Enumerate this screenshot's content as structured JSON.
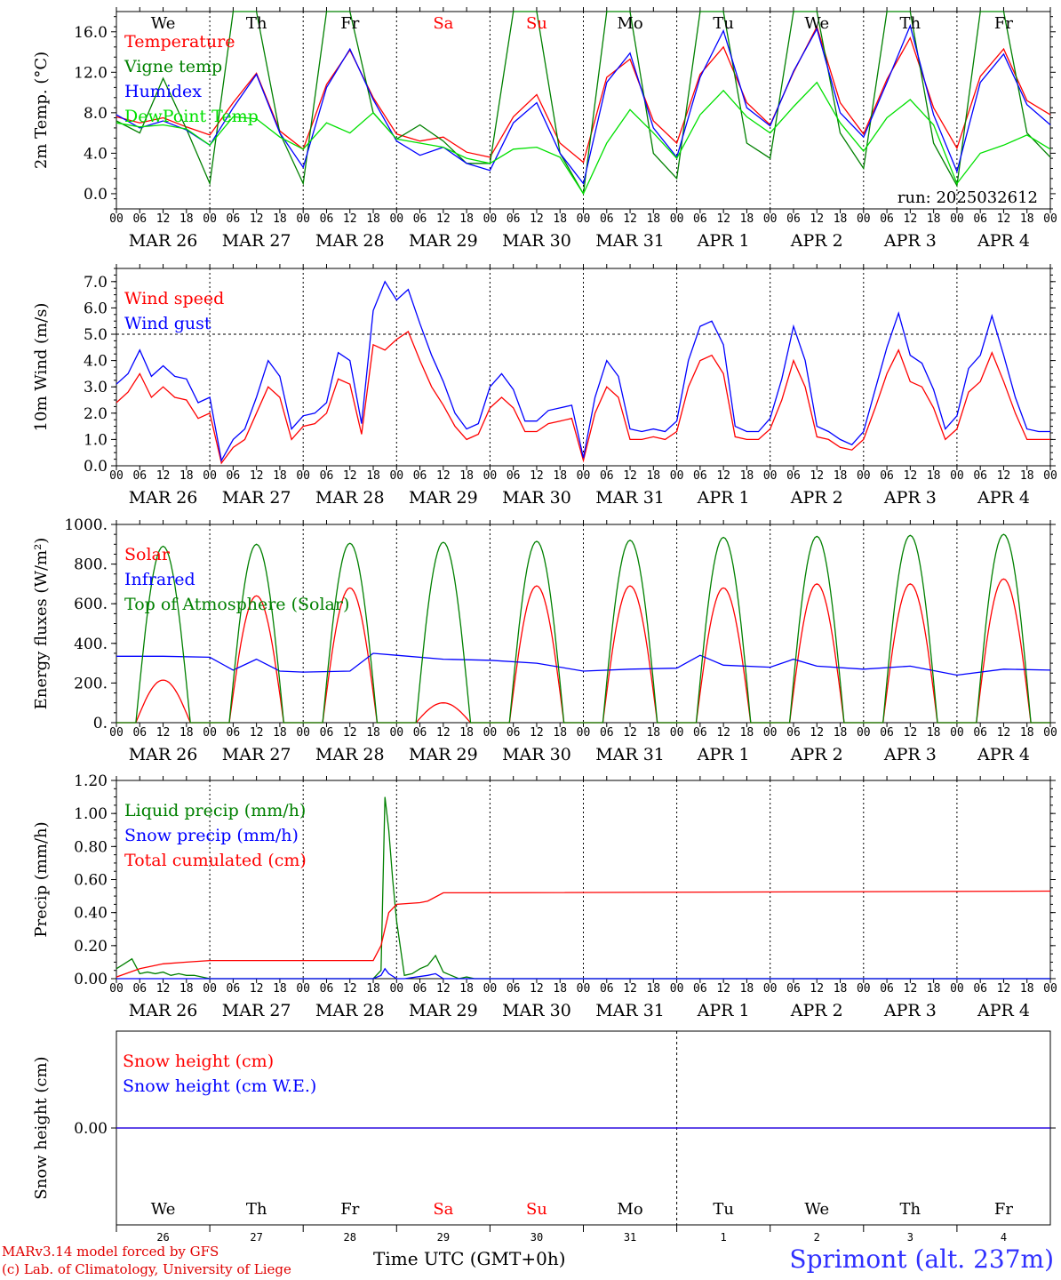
{
  "run_label": "run: 2025032612",
  "hour_ticks": [
    "00",
    "06",
    "12",
    "18"
  ],
  "end_hour_tick": "00",
  "dates": [
    "MAR 26",
    "MAR 27",
    "MAR 28",
    "MAR 29",
    "MAR 30",
    "MAR 31",
    "APR  1",
    "APR  2",
    "APR  3",
    "APR  4"
  ],
  "weekdays": [
    {
      "label": "We",
      "color": "#000000"
    },
    {
      "label": "Th",
      "color": "#000000"
    },
    {
      "label": "Fr",
      "color": "#000000"
    },
    {
      "label": "Sa",
      "color": "#ff0000"
    },
    {
      "label": "Su",
      "color": "#ff0000"
    },
    {
      "label": "Mo",
      "color": "#000000"
    },
    {
      "label": "Tu",
      "color": "#000000"
    },
    {
      "label": "We",
      "color": "#000000"
    },
    {
      "label": "Th",
      "color": "#000000"
    },
    {
      "label": "Fr",
      "color": "#000000"
    }
  ],
  "bottom_day_numbers": [
    "26",
    "27",
    "28",
    "29",
    "30",
    "31",
    "1",
    "2",
    "3",
    "4"
  ],
  "bottom_month_labels": [
    "MAR",
    "APR"
  ],
  "footer": {
    "model": "MARv3.14 model forced by GFS",
    "lab": "(c) Lab. of Climatology, University of Liege",
    "xlabel": "Time UTC (GMT+0h)",
    "station": "Sprimont (alt. 237m)"
  },
  "colors": {
    "red": "#ff0000",
    "green": "#008000",
    "blue": "#0000ff",
    "lightgreen": "#00e000"
  },
  "chart_data": [
    {
      "type": "line",
      "ylabel": "2m Temp. (°C)",
      "ylim": [
        -1.5,
        18
      ],
      "yticks": [
        "0.0",
        "4.0",
        "8.0",
        "12.0",
        "16.0"
      ],
      "ytick_values": [
        0,
        4,
        8,
        12,
        16
      ],
      "x_unit": "hours since MAR 26 00 UTC",
      "series": [
        {
          "name": "Temperature",
          "color": "#ff0000",
          "x": [
            0,
            6,
            12,
            18,
            24,
            30,
            36,
            42,
            48,
            54,
            60,
            66,
            72,
            78,
            84,
            90,
            96,
            102,
            108,
            114,
            120,
            126,
            132,
            138,
            144,
            150,
            156,
            162,
            168,
            174,
            180,
            186,
            192,
            198,
            204,
            210,
            216,
            222,
            228,
            234,
            240
          ],
          "y": [
            7.6,
            7.0,
            7.5,
            6.6,
            5.8,
            9.0,
            11.9,
            6.2,
            4.4,
            10.8,
            14.2,
            9.5,
            5.9,
            5.2,
            5.6,
            4.1,
            3.6,
            7.6,
            9.8,
            5.0,
            3.1,
            11.5,
            13.3,
            7.2,
            5.0,
            11.8,
            14.5,
            9.0,
            6.8,
            12.0,
            16.5,
            9.0,
            5.9,
            11.3,
            15.4,
            8.5,
            4.5,
            11.6,
            14.3,
            9.2,
            7.8
          ]
        },
        {
          "name": "Vigne temp",
          "color": "#008000",
          "x": [
            0,
            6,
            12,
            18,
            24,
            30,
            36,
            42,
            48,
            54,
            60,
            66,
            72,
            78,
            84,
            90,
            96,
            102,
            108,
            114,
            120,
            126,
            132,
            138,
            144,
            150,
            156,
            162,
            168,
            174,
            180,
            186,
            192,
            198,
            204,
            210,
            216,
            222,
            228,
            234,
            240
          ],
          "y": [
            7.2,
            6.0,
            11.4,
            6.4,
            1.0,
            18.0,
            18.0,
            6.0,
            1.0,
            18.0,
            18.0,
            8.0,
            5.4,
            6.8,
            5.2,
            3.0,
            3.0,
            18.0,
            18.0,
            4.0,
            0.0,
            18.0,
            18.0,
            4.0,
            1.5,
            18.0,
            18.0,
            5.0,
            3.5,
            18.0,
            18.0,
            6.0,
            2.5,
            18.0,
            18.0,
            5.0,
            0.8,
            18.0,
            18.0,
            6.0,
            3.6
          ]
        },
        {
          "name": "Humidex",
          "color": "#0000ff",
          "x": [
            0,
            6,
            12,
            18,
            24,
            30,
            36,
            42,
            48,
            54,
            60,
            66,
            72,
            78,
            84,
            90,
            96,
            102,
            108,
            114,
            120,
            126,
            132,
            138,
            144,
            150,
            156,
            162,
            168,
            174,
            180,
            186,
            192,
            198,
            204,
            210,
            216,
            222,
            228,
            234,
            240
          ],
          "y": [
            7.8,
            6.5,
            7.2,
            6.3,
            4.8,
            8.5,
            11.8,
            6.0,
            2.6,
            10.5,
            14.3,
            9.3,
            5.2,
            3.8,
            4.6,
            3.0,
            2.3,
            7.0,
            9.0,
            4.0,
            1.0,
            11.0,
            13.9,
            6.5,
            3.6,
            11.5,
            16.1,
            8.5,
            6.7,
            12.1,
            16.3,
            8.0,
            5.6,
            11.0,
            16.6,
            7.8,
            2.2,
            11.0,
            13.8,
            8.8,
            6.8
          ]
        },
        {
          "name": "DewPoint Temp",
          "color": "#00e000",
          "x": [
            0,
            6,
            12,
            18,
            24,
            30,
            36,
            42,
            48,
            54,
            60,
            66,
            72,
            78,
            84,
            90,
            96,
            102,
            108,
            114,
            120,
            126,
            132,
            138,
            144,
            150,
            156,
            162,
            168,
            174,
            180,
            186,
            192,
            198,
            204,
            210,
            216,
            222,
            228,
            234,
            240
          ],
          "y": [
            7.0,
            6.6,
            6.8,
            6.4,
            4.8,
            7.6,
            7.4,
            5.6,
            4.4,
            7.0,
            6.0,
            8.0,
            5.4,
            5.0,
            4.6,
            3.5,
            3.0,
            4.4,
            4.6,
            3.6,
            0.0,
            5.0,
            8.3,
            6.0,
            3.5,
            7.8,
            10.2,
            7.6,
            6.0,
            8.6,
            11.0,
            7.0,
            4.2,
            7.5,
            9.3,
            6.8,
            1.0,
            4.0,
            4.8,
            5.8,
            4.4
          ]
        }
      ]
    },
    {
      "type": "line",
      "ylabel": "10m Wind (m/s)",
      "ylim": [
        0,
        7.5
      ],
      "yticks": [
        "0.0",
        "1.0",
        "2.0",
        "3.0",
        "4.0",
        "5.0",
        "6.0",
        "7.0"
      ],
      "ytick_values": [
        0,
        1,
        2,
        3,
        4,
        5,
        6,
        7
      ],
      "dashed_line": 5.0,
      "series": [
        {
          "name": "Wind speed",
          "color": "#ff0000",
          "x": [
            0,
            3,
            6,
            9,
            12,
            15,
            18,
            21,
            24,
            27,
            30,
            33,
            36,
            39,
            42,
            45,
            48,
            51,
            54,
            57,
            60,
            63,
            66,
            69,
            72,
            75,
            78,
            81,
            84,
            87,
            90,
            93,
            96,
            99,
            102,
            105,
            108,
            111,
            114,
            117,
            120,
            123,
            126,
            129,
            132,
            135,
            138,
            141,
            144,
            147,
            150,
            153,
            156,
            159,
            162,
            165,
            168,
            171,
            174,
            177,
            180,
            183,
            186,
            189,
            192,
            195,
            198,
            201,
            204,
            207,
            210,
            213,
            216,
            219,
            222,
            225,
            228,
            231,
            234,
            237,
            240
          ],
          "y": [
            2.4,
            2.8,
            3.5,
            2.6,
            3.0,
            2.6,
            2.5,
            1.8,
            2.0,
            0.1,
            0.7,
            1.0,
            2.0,
            3.0,
            2.6,
            1.0,
            1.5,
            1.6,
            2.0,
            3.3,
            3.1,
            1.2,
            4.6,
            4.4,
            4.8,
            5.1,
            4.0,
            3.0,
            2.3,
            1.5,
            1.0,
            1.2,
            2.2,
            2.6,
            2.2,
            1.3,
            1.3,
            1.6,
            1.7,
            1.8,
            0.2,
            2.0,
            3.0,
            2.6,
            1.0,
            1.0,
            1.1,
            1.0,
            1.3,
            3.0,
            4.0,
            4.2,
            3.5,
            1.1,
            1.0,
            1.0,
            1.4,
            2.5,
            4.0,
            3.0,
            1.1,
            1.0,
            0.7,
            0.6,
            1.0,
            2.2,
            3.5,
            4.4,
            3.2,
            3.0,
            2.2,
            1.0,
            1.4,
            2.8,
            3.2,
            4.3,
            3.2,
            2.0,
            1.0,
            1.0,
            1.0
          ]
        },
        {
          "name": "Wind gust",
          "color": "#0000ff",
          "x": [
            0,
            3,
            6,
            9,
            12,
            15,
            18,
            21,
            24,
            27,
            30,
            33,
            36,
            39,
            42,
            45,
            48,
            51,
            54,
            57,
            60,
            63,
            66,
            69,
            72,
            75,
            78,
            81,
            84,
            87,
            90,
            93,
            96,
            99,
            102,
            105,
            108,
            111,
            114,
            117,
            120,
            123,
            126,
            129,
            132,
            135,
            138,
            141,
            144,
            147,
            150,
            153,
            156,
            159,
            162,
            165,
            168,
            171,
            174,
            177,
            180,
            183,
            186,
            189,
            192,
            195,
            198,
            201,
            204,
            207,
            210,
            213,
            216,
            219,
            222,
            225,
            228,
            231,
            234,
            237,
            240
          ],
          "y": [
            3.1,
            3.5,
            4.4,
            3.4,
            3.8,
            3.4,
            3.3,
            2.4,
            2.6,
            0.2,
            1.0,
            1.4,
            2.6,
            4.0,
            3.4,
            1.4,
            1.9,
            2.0,
            2.4,
            4.3,
            4.0,
            1.6,
            5.9,
            7.0,
            6.3,
            6.7,
            5.4,
            4.2,
            3.2,
            2.0,
            1.4,
            1.6,
            3.0,
            3.5,
            2.9,
            1.7,
            1.7,
            2.1,
            2.2,
            2.3,
            0.3,
            2.6,
            4.0,
            3.4,
            1.4,
            1.3,
            1.4,
            1.3,
            1.7,
            4.0,
            5.3,
            5.5,
            4.6,
            1.5,
            1.3,
            1.3,
            1.8,
            3.3,
            5.3,
            4.0,
            1.5,
            1.3,
            1.0,
            0.8,
            1.3,
            2.9,
            4.5,
            5.8,
            4.2,
            3.9,
            2.9,
            1.4,
            1.9,
            3.7,
            4.2,
            5.7,
            4.2,
            2.6,
            1.4,
            1.3,
            1.3
          ]
        }
      ]
    },
    {
      "type": "line",
      "ylabel": "Energy fluxes (W/m²)",
      "ylim": [
        0,
        1000
      ],
      "yticks": [
        "0.",
        "200.",
        "400.",
        "600.",
        "800.",
        "1000."
      ],
      "ytick_values": [
        0,
        200,
        400,
        600,
        800,
        1000
      ],
      "series": [
        {
          "name": "Solar",
          "color": "#ff0000",
          "peaks": [
            215,
            640,
            680,
            100,
            690,
            690,
            680,
            700,
            700,
            725
          ]
        },
        {
          "name": "Infrared",
          "color": "#0000ff",
          "x": [
            0,
            12,
            24,
            30,
            36,
            42,
            48,
            60,
            66,
            72,
            84,
            96,
            108,
            120,
            132,
            144,
            150,
            156,
            168,
            174,
            180,
            192,
            204,
            216,
            228,
            240
          ],
          "y": [
            335,
            335,
            330,
            265,
            320,
            260,
            255,
            260,
            350,
            340,
            320,
            315,
            300,
            260,
            270,
            275,
            340,
            290,
            280,
            320,
            285,
            270,
            285,
            240,
            270,
            265
          ]
        },
        {
          "name": "Top of Atmosphere (Solar)",
          "color": "#008000",
          "peaks": [
            890,
            900,
            905,
            910,
            915,
            920,
            935,
            940,
            945,
            950
          ]
        }
      ],
      "daylight_hours": [
        5,
        19
      ]
    },
    {
      "type": "line",
      "ylabel": "Precip (mm/h)",
      "ylim": [
        0,
        1.2
      ],
      "yticks": [
        "0.00",
        "0.20",
        "0.40",
        "0.60",
        "0.80",
        "1.00",
        "1.20"
      ],
      "ytick_values": [
        0,
        0.2,
        0.4,
        0.6,
        0.8,
        1.0,
        1.2
      ],
      "series": [
        {
          "name": "Liquid precip (mm/h)",
          "color": "#008000",
          "x": [
            0,
            2,
            4,
            6,
            8,
            10,
            12,
            14,
            16,
            18,
            20,
            22,
            24,
            30,
            60,
            66,
            68,
            69,
            70,
            71,
            72,
            74,
            76,
            78,
            80,
            82,
            84,
            86,
            88,
            90,
            92,
            96,
            240
          ],
          "y": [
            0.06,
            0.09,
            0.12,
            0.03,
            0.04,
            0.03,
            0.04,
            0.02,
            0.03,
            0.02,
            0.02,
            0.01,
            0.0,
            0.0,
            0.0,
            0.0,
            0.05,
            1.1,
            0.9,
            0.6,
            0.35,
            0.02,
            0.03,
            0.06,
            0.08,
            0.14,
            0.04,
            0.02,
            0.0,
            0.01,
            0.0,
            0.0,
            0.0
          ]
        },
        {
          "name": "Snow precip (mm/h)",
          "color": "#0000ff",
          "x": [
            0,
            66,
            68,
            69,
            70,
            72,
            74,
            80,
            82,
            84,
            240
          ],
          "y": [
            0.0,
            0.0,
            0.02,
            0.06,
            0.03,
            0.0,
            0.0,
            0.02,
            0.03,
            0.0,
            0.0
          ]
        },
        {
          "name": "Total cumulated (cm)",
          "color": "#ff0000",
          "x": [
            0,
            6,
            12,
            18,
            24,
            30,
            60,
            66,
            68,
            70,
            72,
            78,
            80,
            84,
            90,
            96,
            240
          ],
          "y": [
            0.01,
            0.06,
            0.09,
            0.1,
            0.11,
            0.11,
            0.11,
            0.11,
            0.2,
            0.4,
            0.45,
            0.46,
            0.47,
            0.52,
            0.52,
            0.52,
            0.53
          ]
        }
      ]
    },
    {
      "type": "line",
      "ylabel": "Snow height (cm)",
      "ylim": [
        -1,
        1
      ],
      "yticks": [
        "0.00"
      ],
      "ytick_values": [
        0
      ],
      "series": [
        {
          "name": "Snow height (cm)",
          "color": "#ff0000",
          "x": [
            0,
            240
          ],
          "y": [
            0,
            0
          ]
        },
        {
          "name": "Snow height (cm W.E.)",
          "color": "#0000ff",
          "x": [
            0,
            240
          ],
          "y": [
            0,
            0
          ]
        }
      ]
    }
  ]
}
